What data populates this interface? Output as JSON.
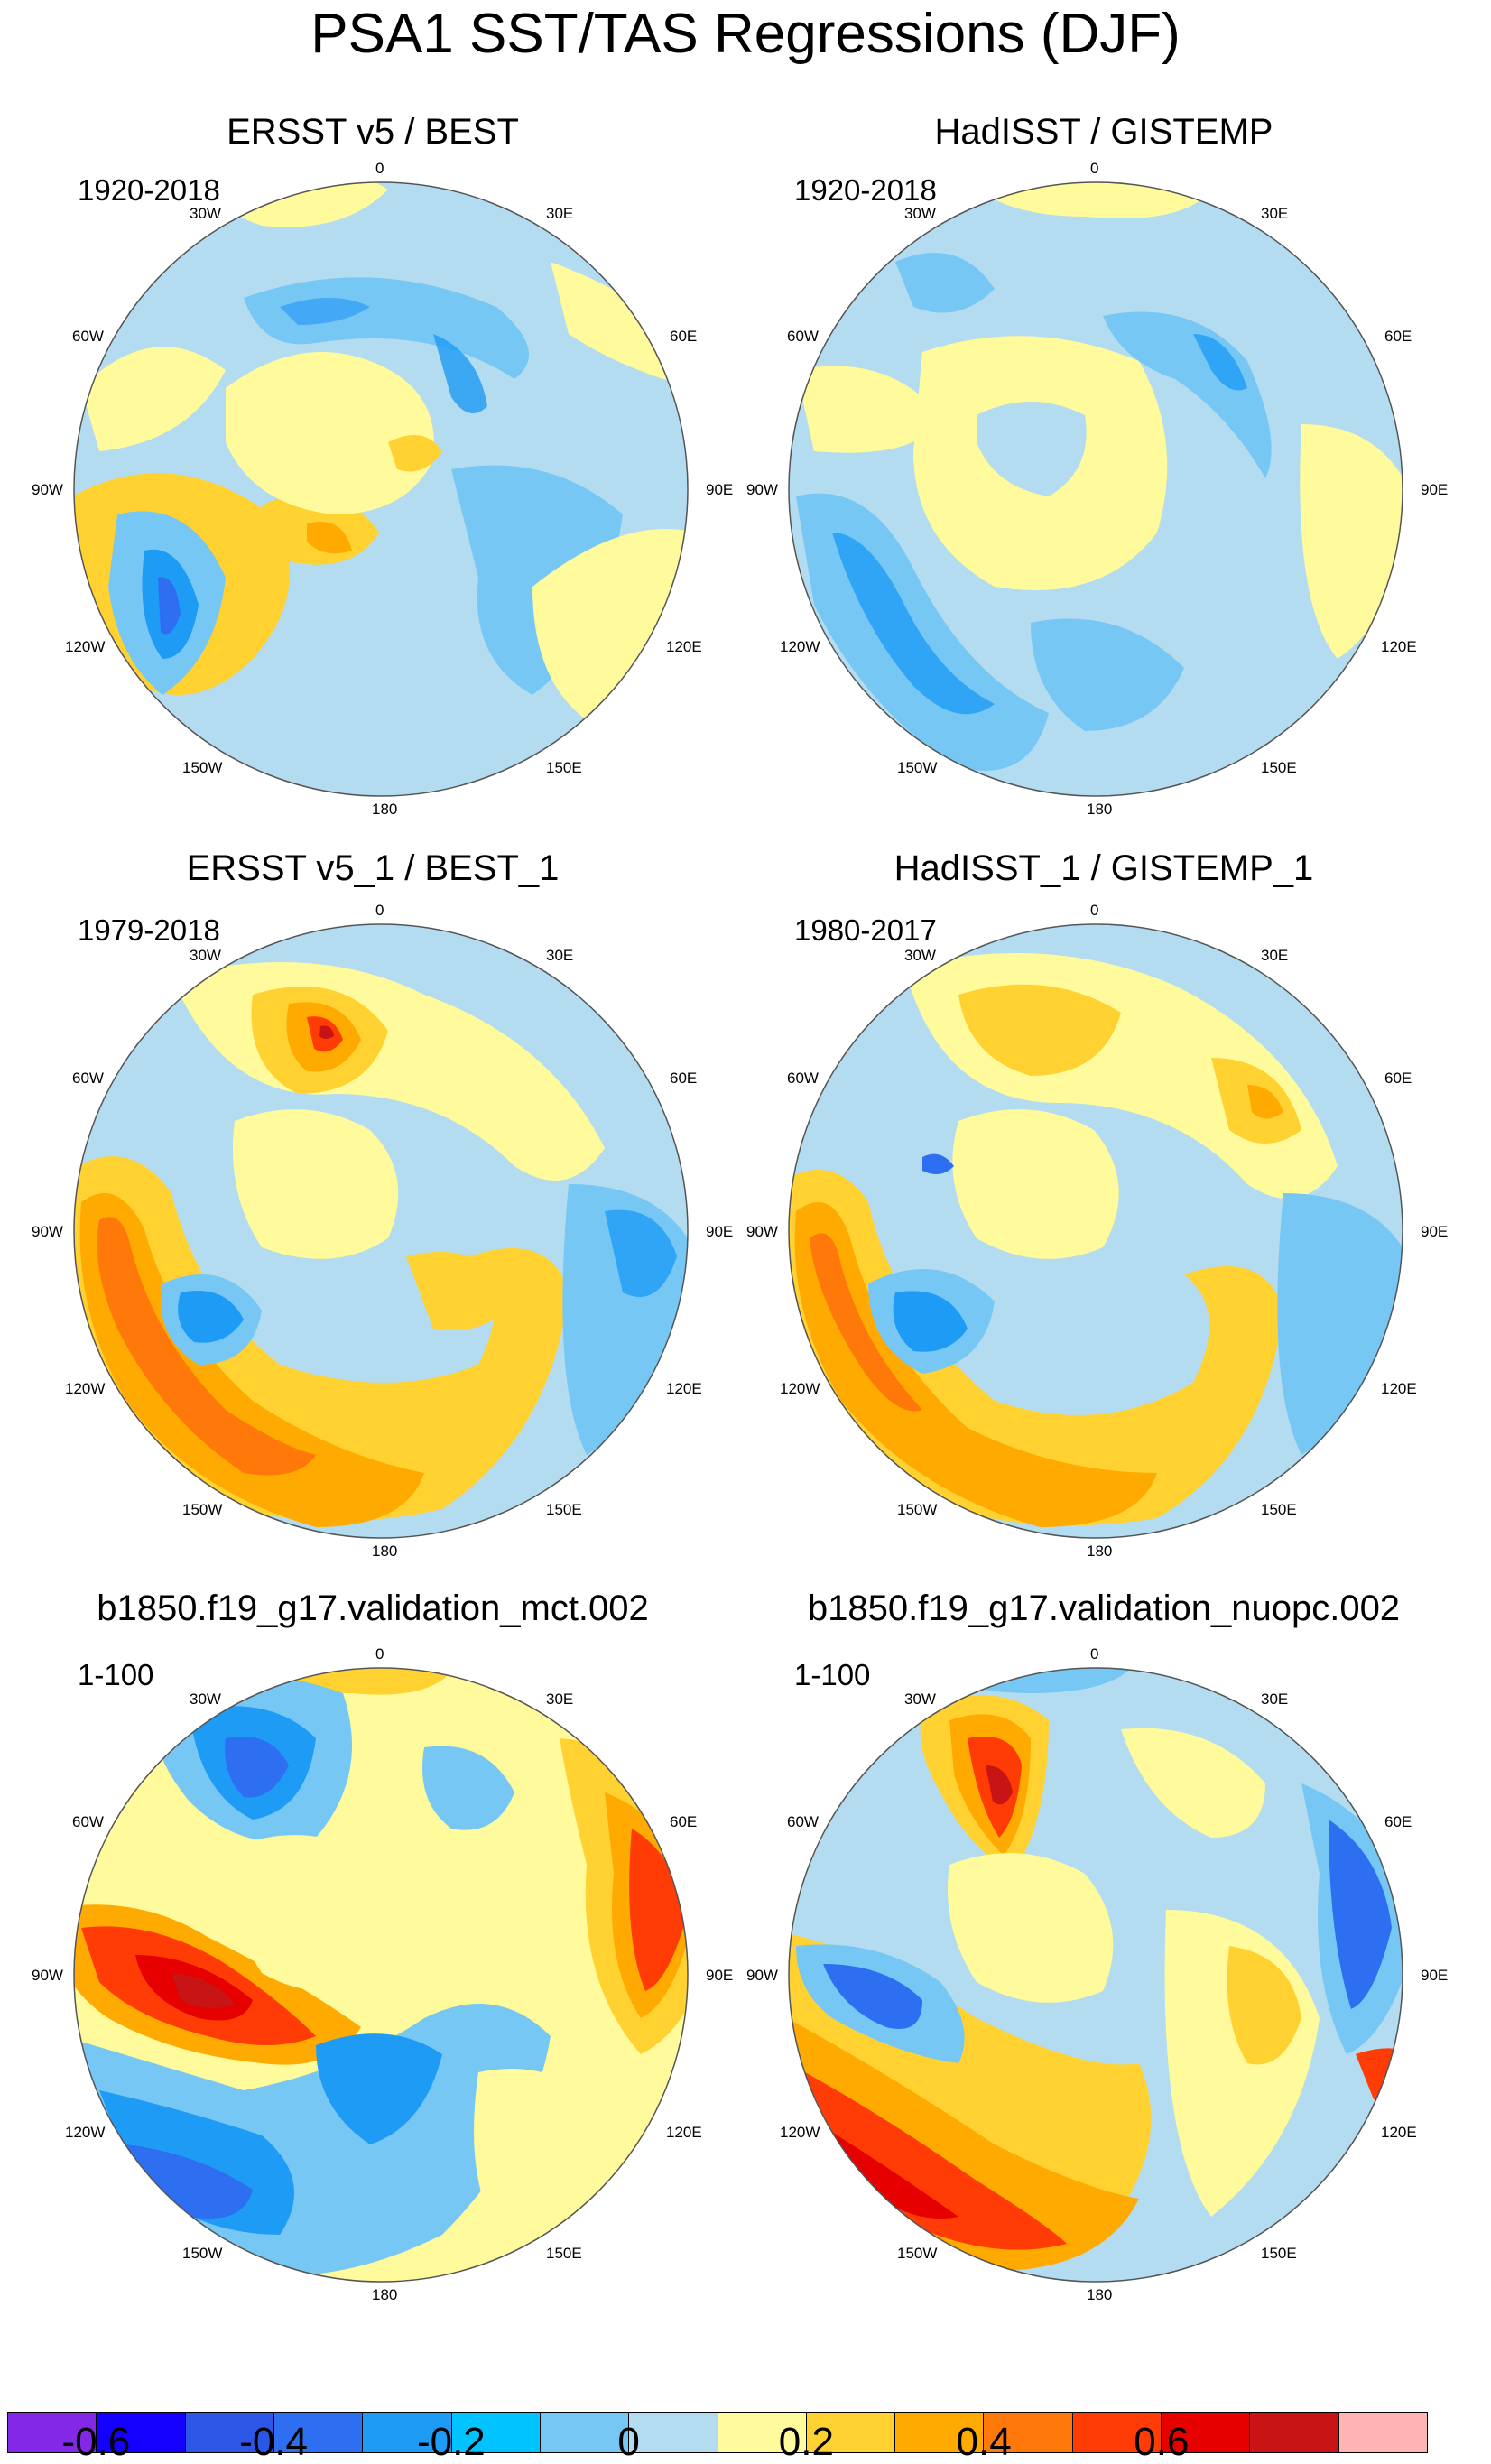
{
  "title": "PSA1 SST/TAS Regressions (DJF)",
  "panels": [
    {
      "title": "ERSST v5 / BEST",
      "period": "1920-2018"
    },
    {
      "title": "HadISST / GISTEMP",
      "period": "1920-2018"
    },
    {
      "title": "ERSST v5_1 / BEST_1",
      "period": "1979-2018"
    },
    {
      "title": "HadISST_1 / GISTEMP_1",
      "period": "1980-2017"
    },
    {
      "title": "b1850.f19_g17.validation_mct.002",
      "period": "1-100"
    },
    {
      "title": "b1850.f19_g17.validation_nuopc.002",
      "period": "1-100"
    }
  ],
  "longitude_labels": [
    "0",
    "30E",
    "60E",
    "90E",
    "120E",
    "150E",
    "180",
    "150W",
    "120W",
    "90W",
    "60W",
    "30W"
  ],
  "colorbar": {
    "colors": [
      "#8228e6",
      "#1400ff",
      "#2c56e6",
      "#2e6ef0",
      "#1e9bf5",
      "#00c3ff",
      "#77c7f4",
      "#b4dcf0",
      "#fffa9b",
      "#ffd232",
      "#ffaa00",
      "#ff780a",
      "#ff3c05",
      "#e60000",
      "#c81414",
      "#ffb4b4"
    ],
    "tick_labels": [
      "-0.6",
      "-0.4",
      "-0.2",
      "0",
      "0.2",
      "0.4",
      "0.6"
    ],
    "tick_values": [
      -0.6,
      -0.4,
      -0.2,
      0,
      0.2,
      0.4,
      0.6
    ]
  }
}
